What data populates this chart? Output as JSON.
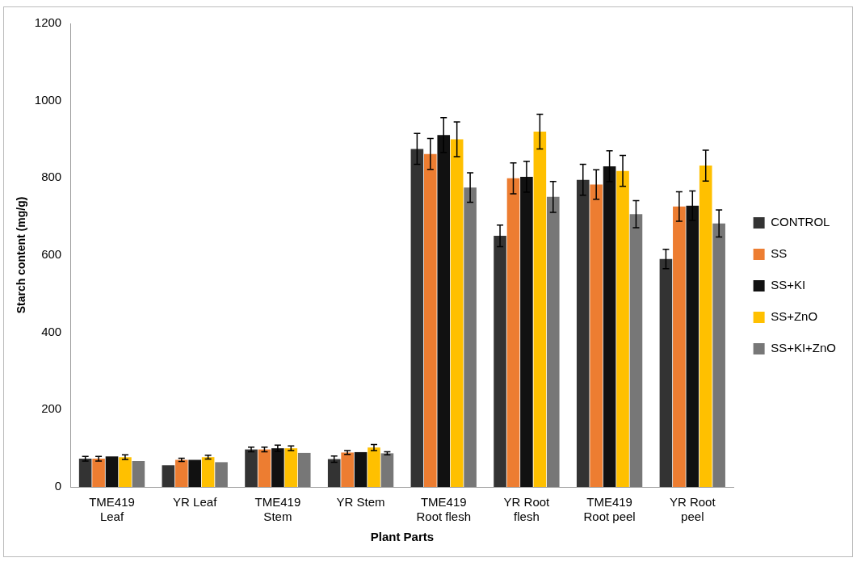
{
  "chart_data": {
    "type": "bar",
    "xlabel": "Plant Parts",
    "ylabel": "Starch content (mg/g)",
    "categories": [
      "TME419 Leaf",
      "YR Leaf",
      "TME419 Stem",
      "YR Stem",
      "TME419 Root flesh",
      "YR Root flesh",
      "TME419 Root peel",
      "YR Root peel"
    ],
    "series": [
      {
        "name": "CONTROL",
        "color": "#333333",
        "values": [
          73,
          56,
          97,
          72,
          875,
          650,
          795,
          590
        ],
        "errors": [
          6,
          null,
          6,
          8,
          40,
          28,
          40,
          25
        ]
      },
      {
        "name": "SS",
        "color": "#ed7d31",
        "values": [
          73,
          70,
          97,
          89,
          862,
          799,
          783,
          726
        ],
        "errors": [
          6,
          4,
          6,
          5,
          40,
          40,
          38,
          38
        ]
      },
      {
        "name": "SS+KI",
        "color": "#111111",
        "values": [
          79,
          70,
          100,
          90,
          911,
          803,
          830,
          728
        ],
        "errors": [
          null,
          null,
          8,
          null,
          45,
          40,
          40,
          38
        ]
      },
      {
        "name": "SS+ZnO",
        "color": "#ffc000",
        "values": [
          77,
          77,
          100,
          102,
          900,
          920,
          818,
          832
        ],
        "errors": [
          6,
          5,
          6,
          8,
          45,
          45,
          40,
          40
        ]
      },
      {
        "name": "SS+KI+ZnO",
        "color": "#777777",
        "values": [
          67,
          64,
          88,
          87,
          775,
          751,
          706,
          682
        ],
        "errors": [
          null,
          null,
          null,
          4,
          38,
          40,
          35,
          35
        ]
      }
    ],
    "ylim": [
      0,
      1200
    ],
    "yticks": [
      0,
      200,
      400,
      600,
      800,
      1000,
      1200
    ],
    "grid": false,
    "legend": "right"
  }
}
